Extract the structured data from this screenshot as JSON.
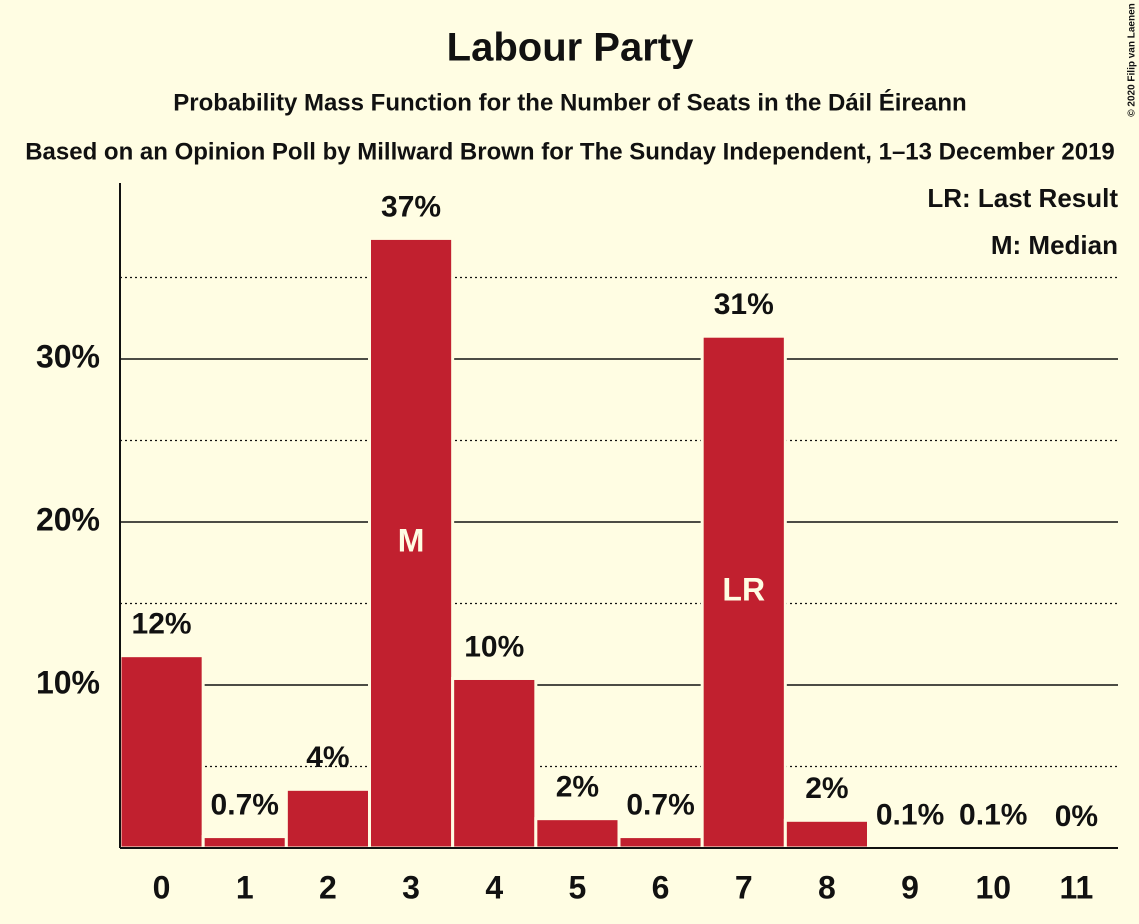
{
  "chart_data": {
    "type": "bar",
    "title": "Labour Party",
    "subtitle": "Probability Mass Function for the Number of Seats in the Dáil Éireann",
    "subtitle2": "Based on an Opinion Poll by Millward Brown for The Sunday Independent, 1–13 December 2019",
    "copyright": "© 2020 Filip van Laenen",
    "legend": [
      "LR: Last Result",
      "M: Median"
    ],
    "categories": [
      "0",
      "1",
      "2",
      "3",
      "4",
      "5",
      "6",
      "7",
      "8",
      "9",
      "10",
      "11"
    ],
    "values": [
      11.8,
      0.7,
      3.6,
      37.4,
      10.4,
      1.8,
      0.7,
      31.4,
      1.7,
      0.1,
      0.1,
      0
    ],
    "value_labels": [
      "12%",
      "0.7%",
      "4%",
      "37%",
      "10%",
      "2%",
      "0.7%",
      "31%",
      "2%",
      "0.1%",
      "0.1%",
      "0%"
    ],
    "bar_notes": [
      null,
      null,
      null,
      "M",
      null,
      null,
      null,
      "LR",
      null,
      null,
      null,
      null
    ],
    "color": "#c1202f",
    "ylim": [
      0,
      40.8
    ],
    "yticks": [
      {
        "value": 10,
        "label": "10%"
      },
      {
        "value": 20,
        "label": "20%"
      },
      {
        "value": 30,
        "label": "30%"
      }
    ],
    "minor_yticks": [
      5,
      15,
      25,
      35
    ],
    "grid": true
  }
}
